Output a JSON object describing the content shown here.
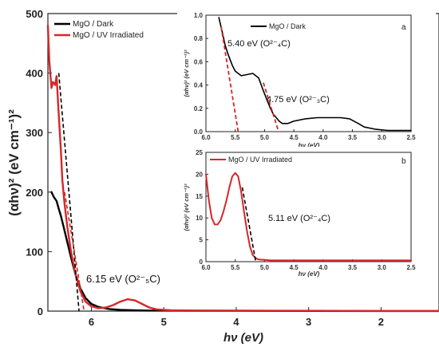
{
  "chart_data": [
    {
      "type": "line",
      "panel": "main",
      "xlabel": "hν (eV)",
      "ylabel": "(αhν)² (eV cm⁻¹)²",
      "xlim": [
        6.6,
        1.2
      ],
      "ylim": [
        0,
        500
      ],
      "x_ticks": [
        6,
        5,
        4,
        3,
        2
      ],
      "y_ticks": [
        0,
        100,
        200,
        300,
        400,
        500
      ],
      "legend_position": "top-left",
      "series": [
        {
          "name": "MgO / Dark",
          "color": "#000000",
          "x": [
            6.55,
            6.52,
            6.48,
            6.45,
            6.42,
            6.38,
            6.33,
            6.28,
            6.22,
            6.15,
            6.08,
            6.0,
            5.9,
            5.75,
            5.6,
            5.4,
            5.2,
            5.0,
            4.5,
            4.0,
            3.0,
            2.0,
            1.2
          ],
          "y": [
            200,
            192,
            185,
            172,
            160,
            140,
            115,
            90,
            62,
            38,
            22,
            12,
            7,
            3.5,
            2,
            1.5,
            1,
            1,
            0.5,
            0.5,
            0.3,
            0.2,
            0.2
          ]
        },
        {
          "name": "MgO / UV Irradiated",
          "color": "#d62728",
          "x": [
            6.6,
            6.58,
            6.55,
            6.53,
            6.5,
            6.48,
            6.45,
            6.42,
            6.4,
            6.37,
            6.33,
            6.28,
            6.22,
            6.15,
            6.08,
            6.0,
            5.9,
            5.8,
            5.7,
            5.6,
            5.5,
            5.4,
            5.3,
            5.2,
            5.1,
            5.0,
            4.9,
            4.5,
            4.0,
            3.0,
            2.0,
            1.2
          ],
          "y": [
            480,
            420,
            375,
            385,
            380,
            395,
            330,
            270,
            220,
            180,
            140,
            100,
            62,
            33,
            16,
            8,
            5,
            6,
            10,
            16,
            20,
            18,
            12,
            6,
            3,
            2,
            1.5,
            1,
            0.8,
            0.5,
            0.3,
            0.3
          ]
        }
      ],
      "fit_lines": [
        {
          "color": "#000000",
          "style": "dashed",
          "x": [
            6.45,
            6.17
          ],
          "y": [
            400,
            0
          ]
        },
        {
          "color": "#d62728",
          "style": "dashed",
          "x": [
            6.37,
            6.1
          ],
          "y": [
            200,
            0
          ]
        }
      ],
      "annotations": [
        {
          "text": "6.15 eV (O²⁻₅C)",
          "x": 6.15,
          "y": 45
        }
      ]
    },
    {
      "type": "line",
      "panel": "a",
      "xlabel": "hν (eV)",
      "ylabel": "(αhν)² (eV cm⁻¹)²",
      "xlim": [
        6.0,
        2.5
      ],
      "ylim": [
        0,
        1.0
      ],
      "x_ticks": [
        "6.0",
        "5.5",
        "5.0",
        "4.5",
        "4.0",
        "3.5",
        "3.0",
        "2.5"
      ],
      "y_ticks": [
        "0.0",
        "0.2",
        "0.4",
        "0.6",
        "0.8",
        "1.0"
      ],
      "legend_position": "top",
      "series": [
        {
          "name": "MgO / Dark",
          "color": "#000000",
          "x": [
            5.78,
            5.72,
            5.67,
            5.62,
            5.55,
            5.5,
            5.45,
            5.4,
            5.3,
            5.2,
            5.1,
            5.02,
            4.95,
            4.9,
            4.85,
            4.8,
            4.75,
            4.7,
            4.6,
            4.5,
            4.3,
            4.1,
            3.9,
            3.7,
            3.55,
            3.4,
            3.3,
            3.1,
            2.9,
            2.5
          ],
          "y": [
            0.98,
            0.85,
            0.74,
            0.66,
            0.57,
            0.52,
            0.5,
            0.48,
            0.49,
            0.5,
            0.46,
            0.35,
            0.26,
            0.2,
            0.15,
            0.12,
            0.09,
            0.07,
            0.07,
            0.09,
            0.11,
            0.12,
            0.12,
            0.12,
            0.11,
            0.07,
            0.04,
            0.02,
            0.01,
            0.01
          ]
        }
      ],
      "fit_lines": [
        {
          "color": "#d62728",
          "style": "dashed",
          "x": [
            5.74,
            5.45
          ],
          "y": [
            0.9,
            0.0
          ]
        },
        {
          "color": "#d62728",
          "style": "dashed",
          "x": [
            5.02,
            4.76
          ],
          "y": [
            0.42,
            0.0
          ]
        }
      ],
      "annotations": [
        {
          "text": "5.40 eV (O²⁻₄C)",
          "x": 5.62,
          "y": 0.72
        },
        {
          "text": "4.75 eV (O²⁻₃C)",
          "x": 4.97,
          "y": 0.26
        }
      ],
      "panel_label": "a"
    },
    {
      "type": "line",
      "panel": "b",
      "xlabel": "hν (eV)",
      "ylabel": "(αhν)² (eV cm⁻¹)²",
      "xlim": [
        6.0,
        2.5
      ],
      "ylim": [
        0,
        25
      ],
      "x_ticks": [
        "6.0",
        "5.5",
        "5.0",
        "4.5",
        "4.0",
        "3.5",
        "3.0",
        "2.5"
      ],
      "y_ticks": [
        "0",
        "5",
        "10",
        "15",
        "20",
        "25"
      ],
      "legend_position": "top-left",
      "series": [
        {
          "name": "MgO / UV Irradiated",
          "color": "#d62728",
          "x": [
            6.0,
            5.95,
            5.9,
            5.85,
            5.8,
            5.75,
            5.7,
            5.65,
            5.6,
            5.55,
            5.5,
            5.45,
            5.4,
            5.35,
            5.3,
            5.25,
            5.2,
            5.15,
            5.1,
            5.0,
            4.9,
            4.5,
            4.0,
            3.5,
            3.0,
            2.5
          ],
          "y": [
            20,
            14,
            10,
            8.5,
            8.5,
            9.5,
            11.5,
            14,
            17,
            19.5,
            20.3,
            19.5,
            16,
            11.5,
            7,
            3.5,
            1.5,
            0.8,
            0.5,
            0.4,
            0.3,
            0.3,
            0.3,
            0.3,
            0.3,
            0.3
          ]
        }
      ],
      "fit_lines": [
        {
          "color": "#000000",
          "style": "dashed",
          "x": [
            5.38,
            5.15
          ],
          "y": [
            17,
            0
          ]
        }
      ],
      "annotations": [
        {
          "text": "5.11 eV (O²⁻₄C)",
          "x": 5.36,
          "y": 8
        }
      ],
      "panel_label": "b"
    }
  ]
}
